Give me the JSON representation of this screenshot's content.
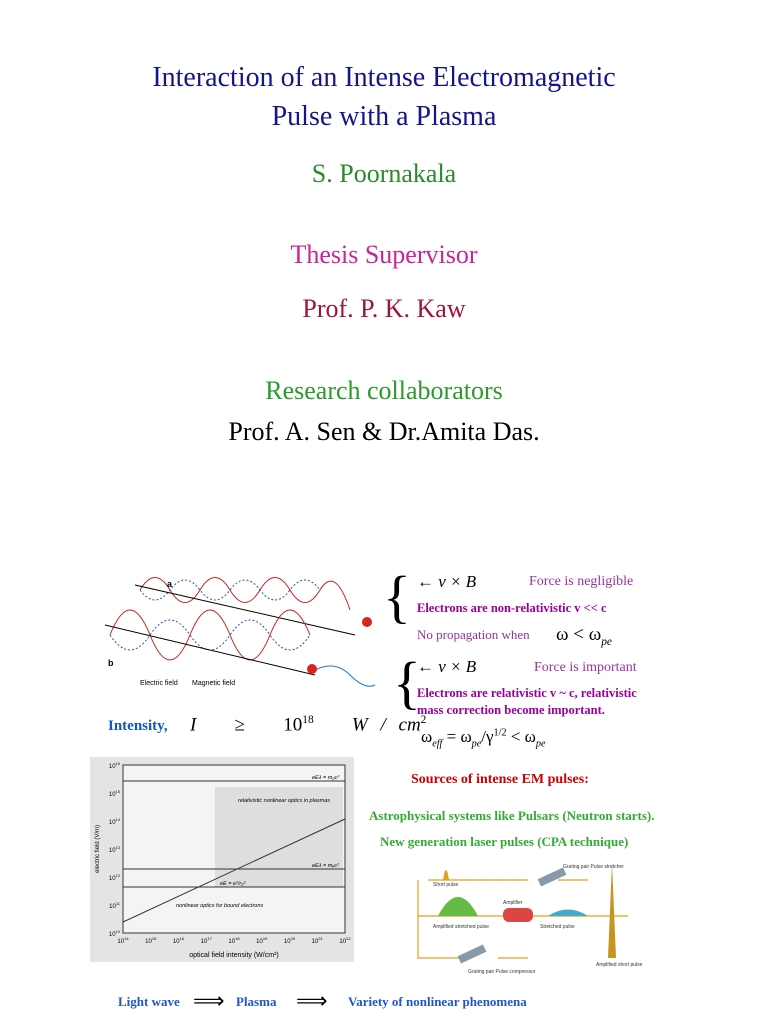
{
  "title": [
    "Interaction of an Intense Electromagnetic",
    "Pulse with a Plasma"
  ],
  "author": "S. Poornakala",
  "supervisor_label": "Thesis Supervisor",
  "supervisor": "Prof. P. K. Kaw",
  "collaborators_label": "Research collaborators",
  "collaborators": "Prof. A. Sen & Dr.Amita Das.",
  "wave_figure": {
    "labels": [
      "a",
      "b",
      "Electric field",
      "Magnetic field"
    ]
  },
  "brace": "{",
  "regimes": [
    {
      "lorentz": "← v × B",
      "force": "Force is negligible",
      "electrons": "Electrons are non-relativistic  v << c",
      "propagation": "No propagation when",
      "condition": {
        "lhs": "ω < ω",
        "sub": "pe"
      }
    },
    {
      "lorentz": "← v × B",
      "force": "Force is important",
      "electrons": [
        "Electrons are relativistic  v ~ c, relativistic",
        "mass correction become important."
      ],
      "condition": {
        "w1": "ω",
        "sub1": "eff",
        "eq": " = ω",
        "sub2": "pe",
        "slash": "/γ",
        "sup": "1/2",
        "lt": " < ω",
        "sub3": "pe"
      }
    }
  ],
  "intensity": {
    "label": "Intensity,",
    "lhs": "I",
    "rel": "≥",
    "base": "10",
    "exp": "18",
    "unit": "W / cm",
    "unit_exp": "2"
  },
  "scan_chart": {
    "tick_base": "10",
    "yticks": [
      "16",
      "15",
      "14",
      "13",
      "12",
      "11",
      "10"
    ],
    "xticks": [
      "14",
      "15",
      "16",
      "17",
      "18",
      "19",
      "20",
      "21",
      "22"
    ],
    "ylabel": "electric field (V/m)",
    "xlabel": "optical field intensity (W/cm²)",
    "annotations": [
      "relativistic nonlinear optics in plasmas",
      "nonlinear optics for bound electrons",
      "eEλ = m₀c²",
      "eEλ = mₑc²",
      "eE = e²/r₀²"
    ]
  },
  "sources": {
    "title": "Sources of intense EM pulses:",
    "items": [
      "Astrophysical systems like Pulsars   (Neutron starts).",
      "New generation laser pulses (CPA technique)"
    ]
  },
  "cpa_figure": {
    "labels": [
      "Short pulse",
      "Grating pair Pulse stretcher",
      "Amplifier",
      "Stretched pulse",
      "Amplified stretched pulse",
      "Grating pair Pulse compressor",
      "Amplified short pulse"
    ]
  },
  "footer": {
    "items": [
      "Light wave",
      "Plasma",
      "Variety of nonlinear phenomena"
    ],
    "arrow": "⟹"
  }
}
